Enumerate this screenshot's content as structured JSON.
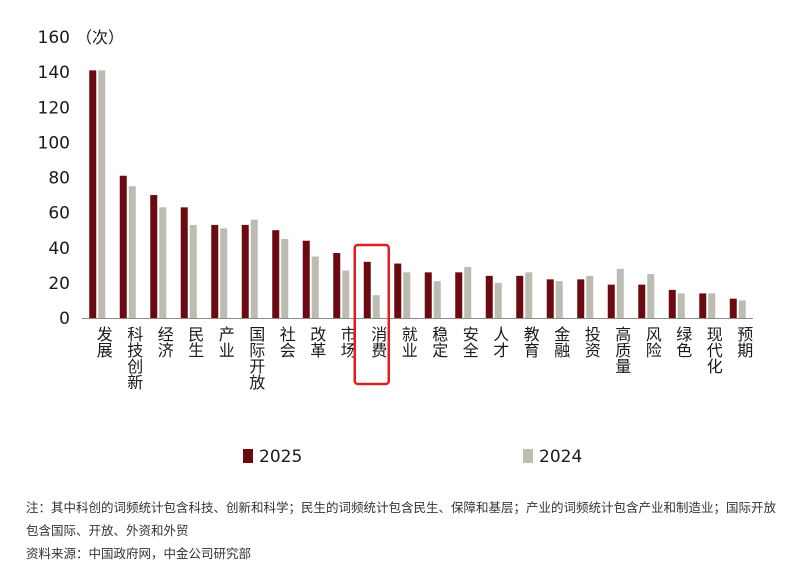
{
  "chart_data": {
    "type": "bar",
    "unit_label": "（次）",
    "categories": [
      "发展",
      "科技创新",
      "经济",
      "民生",
      "产业",
      "国际开放",
      "社会",
      "改革",
      "市场",
      "消费",
      "就业",
      "稳定",
      "安全",
      "人才",
      "教育",
      "金融",
      "投资",
      "高质量",
      "风险",
      "绿色",
      "现代化",
      "预期"
    ],
    "series": [
      {
        "name": "2025",
        "color": "#6b0a10",
        "values": [
          141,
          81,
          70,
          63,
          53,
          53,
          50,
          44,
          37,
          32,
          31,
          26,
          26,
          24,
          24,
          22,
          22,
          19,
          19,
          16,
          14,
          11
        ]
      },
      {
        "name": "2024",
        "color": "#bcbcb2",
        "values": [
          141,
          75,
          63,
          53,
          51,
          56,
          45,
          35,
          27,
          13,
          26,
          21,
          29,
          20,
          26,
          21,
          24,
          28,
          25,
          14,
          14,
          10
        ]
      }
    ],
    "ylim": [
      0,
      160
    ],
    "yticks": [
      0,
      20,
      40,
      60,
      80,
      100,
      120,
      140,
      160
    ],
    "highlight": {
      "category": "消费",
      "color": "#e02020"
    },
    "legend_position": "bottom",
    "grid": false
  },
  "notes": {
    "note": "注：其中科创的词频统计包含科技、创新和科学；民生的词频统计包含民生、保障和基层；产业的词频统计包含产业和制造业；国际开放包含国际、开放、外资和外贸",
    "source": "资料来源：中国政府网，中金公司研究部"
  }
}
